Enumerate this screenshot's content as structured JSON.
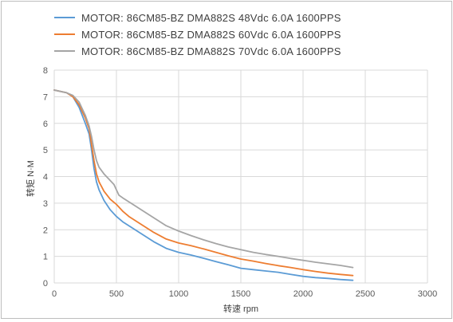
{
  "chart_data": {
    "type": "line",
    "title": "",
    "xlabel": "转速 rpm",
    "ylabel": "转矩 N·M",
    "xlim": [
      0,
      3000
    ],
    "ylim": [
      0,
      8
    ],
    "x_ticks": [
      "0",
      "500",
      "1000",
      "1500",
      "2000",
      "2500",
      "3000"
    ],
    "y_ticks": [
      "0",
      "1",
      "2",
      "3",
      "4",
      "5",
      "6",
      "7",
      "8"
    ],
    "grid": true,
    "legend_position": "top",
    "series": [
      {
        "name": "MOTOR: 86CM85-BZ  DMA882S  48Vdc  6.0A  1600PPS",
        "color": "#5b9bd5",
        "x": [
          0,
          100,
          150,
          200,
          250,
          280,
          300,
          320,
          340,
          360,
          400,
          450,
          500,
          550,
          600,
          700,
          800,
          900,
          1000,
          1100,
          1200,
          1300,
          1400,
          1500,
          1600,
          1700,
          1800,
          1900,
          2000,
          2100,
          2200,
          2300,
          2400
        ],
        "y": [
          7.25,
          7.15,
          7.0,
          6.6,
          6.0,
          5.6,
          5.0,
          4.3,
          3.8,
          3.5,
          3.1,
          2.75,
          2.5,
          2.3,
          2.15,
          1.85,
          1.55,
          1.3,
          1.15,
          1.05,
          0.93,
          0.8,
          0.68,
          0.55,
          0.5,
          0.45,
          0.4,
          0.32,
          0.25,
          0.2,
          0.17,
          0.13,
          0.1
        ]
      },
      {
        "name": "MOTOR: 86CM85-BZ  DMA882S  60Vdc  6.0A  1600PPS",
        "color": "#ed7d31",
        "x": [
          0,
          100,
          150,
          200,
          250,
          280,
          300,
          320,
          340,
          360,
          400,
          450,
          500,
          550,
          600,
          700,
          800,
          900,
          1000,
          1100,
          1200,
          1300,
          1400,
          1500,
          1600,
          1700,
          1800,
          1900,
          2000,
          2100,
          2200,
          2300,
          2400
        ],
        "y": [
          7.25,
          7.15,
          7.0,
          6.7,
          6.2,
          5.8,
          5.2,
          4.6,
          4.1,
          3.8,
          3.45,
          3.15,
          2.95,
          2.7,
          2.5,
          2.2,
          1.9,
          1.65,
          1.5,
          1.4,
          1.28,
          1.15,
          1.02,
          0.9,
          0.82,
          0.73,
          0.65,
          0.58,
          0.5,
          0.43,
          0.37,
          0.32,
          0.28
        ]
      },
      {
        "name": "MOTOR: 86CM85-BZ  DMA882S  70Vdc  6.0A  1600PPS",
        "color": "#a5a5a5",
        "x": [
          0,
          100,
          150,
          200,
          250,
          280,
          300,
          320,
          340,
          360,
          400,
          450,
          480,
          500,
          520,
          550,
          600,
          700,
          800,
          900,
          1000,
          1100,
          1200,
          1300,
          1400,
          1500,
          1600,
          1700,
          1800,
          1900,
          2000,
          2100,
          2200,
          2300,
          2400
        ],
        "y": [
          7.25,
          7.15,
          7.05,
          6.8,
          6.3,
          5.9,
          5.5,
          5.0,
          4.6,
          4.35,
          4.1,
          3.85,
          3.7,
          3.5,
          3.3,
          3.2,
          3.05,
          2.75,
          2.45,
          2.15,
          1.95,
          1.78,
          1.62,
          1.48,
          1.35,
          1.25,
          1.15,
          1.07,
          1.0,
          0.92,
          0.85,
          0.78,
          0.72,
          0.66,
          0.58
        ]
      }
    ]
  }
}
